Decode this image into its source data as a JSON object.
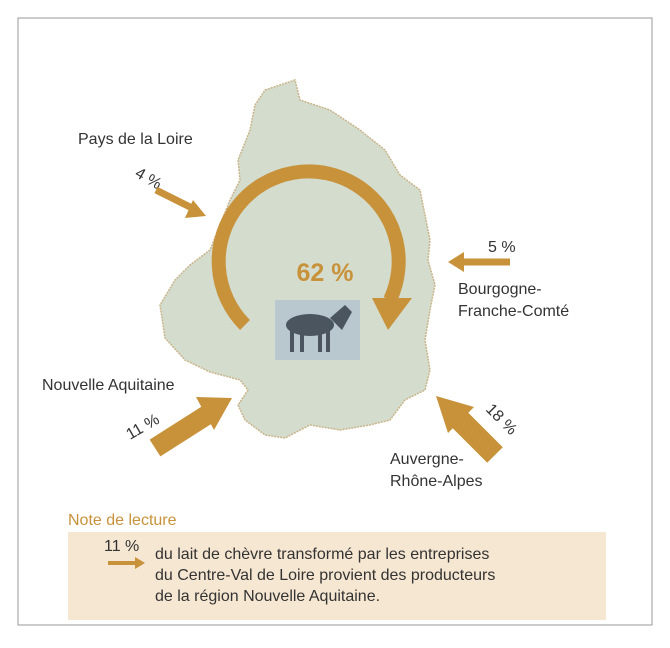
{
  "center": {
    "share": "62 %"
  },
  "flows": [
    {
      "region": [
        "Pays de la Loire"
      ],
      "share": "4 %"
    },
    {
      "region": [
        "Bourgogne-",
        "Franche-Comté"
      ],
      "share": "5 %"
    },
    {
      "region": [
        "Nouvelle Aquitaine"
      ],
      "share": "11 %"
    },
    {
      "region": [
        "Auvergne-",
        "Rhône-Alpes"
      ],
      "share": "18 %"
    }
  ],
  "note": {
    "title": "Note de lecture",
    "share": "11 %",
    "lines": [
      "du lait de chèvre transformé par les entreprises",
      "du Centre-Val de Loire provient des producteurs",
      "de la région Nouvelle Aquitaine."
    ]
  }
}
